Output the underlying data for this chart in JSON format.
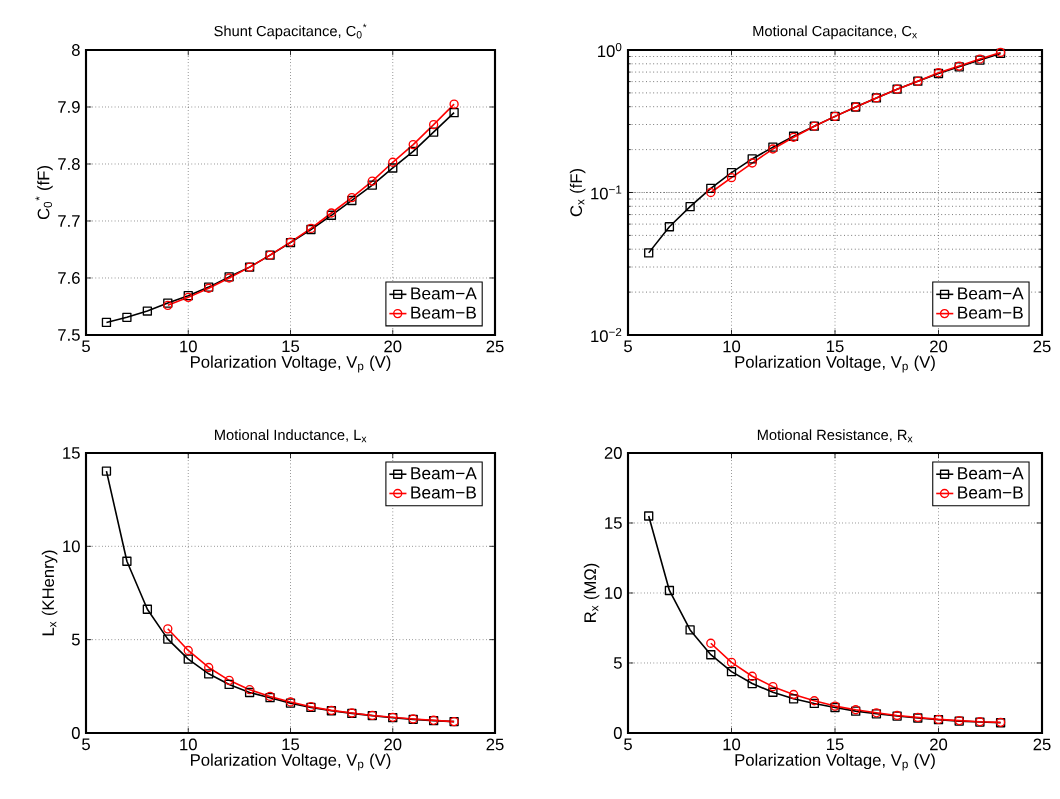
{
  "chart_data": [
    {
      "type": "line",
      "title": "Shunt Capacitance, C$_{0}$$^{*}$",
      "xlabel": "Polarization Voltage, V$_{p}$ (V)",
      "ylabel": "C$_{0}$$^{*}$ (fF)",
      "xlim": [
        5,
        25
      ],
      "xticks": [
        5,
        10,
        15,
        20,
        25
      ],
      "ylim": [
        7.5,
        8
      ],
      "yticks": [
        7.5,
        7.6,
        7.7,
        7.8,
        7.9,
        8
      ],
      "grid": true,
      "legend": "bottom right",
      "series": [
        {
          "name": "Beam−A",
          "color": "#000000",
          "marker": "square",
          "x": [
            6,
            7,
            8,
            9,
            10,
            11,
            12,
            13,
            14,
            15,
            16,
            17,
            18,
            19,
            20,
            21,
            22,
            23
          ],
          "values": [
            7.522,
            7.531,
            7.542,
            7.556,
            7.569,
            7.584,
            7.602,
            7.619,
            7.64,
            7.662,
            7.685,
            7.71,
            7.736,
            7.763,
            7.793,
            7.822,
            7.856,
            7.89
          ]
        },
        {
          "name": "Beam−B",
          "color": "#ff0000",
          "marker": "circle",
          "x": [
            9,
            10,
            11,
            12,
            13,
            14,
            15,
            16,
            17,
            18,
            19,
            20,
            21,
            22,
            23
          ],
          "values": [
            7.552,
            7.566,
            7.582,
            7.6,
            7.619,
            7.64,
            7.663,
            7.687,
            7.714,
            7.741,
            7.77,
            7.803,
            7.834,
            7.869,
            7.905
          ]
        }
      ]
    },
    {
      "type": "line",
      "title": "Motional Capacitance, C$_{x}$",
      "xlabel": "Polarization Voltage, V$_{p}$ (V)",
      "ylabel": "C$_{x}$ (fF)",
      "log": "y",
      "xlim": [
        5,
        25
      ],
      "xticks": [
        5,
        10,
        15,
        20,
        25
      ],
      "ylim": [
        0.01,
        1
      ],
      "yticks": [
        {
          "value": 0.01,
          "label": "10$^{−2}$"
        },
        {
          "value": 0.1,
          "label": "10$^{−1}$"
        },
        {
          "value": 1,
          "label": "10$^{0}$"
        }
      ],
      "grid": true,
      "legend": "bottom right",
      "series": [
        {
          "name": "Beam−A",
          "color": "#000000",
          "marker": "square",
          "x": [
            6,
            7,
            8,
            9,
            10,
            11,
            12,
            13,
            14,
            15,
            16,
            17,
            18,
            19,
            20,
            21,
            22,
            23
          ],
          "values": [
            0.0377,
            0.0575,
            0.0796,
            0.107,
            0.138,
            0.172,
            0.208,
            0.248,
            0.292,
            0.342,
            0.398,
            0.461,
            0.531,
            0.604,
            0.684,
            0.762,
            0.85,
            0.947
          ]
        },
        {
          "name": "Beam−B",
          "color": "#ff0000",
          "marker": "circle",
          "x": [
            9,
            10,
            11,
            12,
            13,
            14,
            15,
            16,
            17,
            18,
            19,
            20,
            21,
            22,
            23
          ],
          "values": [
            0.1,
            0.127,
            0.161,
            0.202,
            0.244,
            0.292,
            0.342,
            0.398,
            0.461,
            0.531,
            0.604,
            0.692,
            0.771,
            0.864,
            0.962
          ]
        }
      ]
    },
    {
      "type": "line",
      "title": "Motional Inductance, L$_{x}$",
      "xlabel": "Polarization Voltage, V$_{p}$ (V)",
      "ylabel": "L$_{x}$ (KHenry)",
      "xlim": [
        5,
        25
      ],
      "xticks": [
        5,
        10,
        15,
        20,
        25
      ],
      "ylim": [
        0,
        15
      ],
      "yticks": [
        0,
        5,
        10,
        15
      ],
      "grid": true,
      "legend": "top right",
      "series": [
        {
          "name": "Beam−A",
          "color": "#000000",
          "marker": "square",
          "x": [
            6,
            7,
            8,
            9,
            10,
            11,
            12,
            13,
            14,
            15,
            16,
            17,
            18,
            19,
            20,
            21,
            22,
            23
          ],
          "values": [
            14.03,
            9.2,
            6.63,
            5.03,
            3.96,
            3.17,
            2.6,
            2.17,
            1.89,
            1.6,
            1.37,
            1.19,
            1.05,
            0.93,
            0.82,
            0.73,
            0.66,
            0.61
          ]
        },
        {
          "name": "Beam−B",
          "color": "#ff0000",
          "marker": "circle",
          "x": [
            9,
            10,
            11,
            12,
            13,
            14,
            15,
            16,
            17,
            18,
            19,
            20,
            21,
            22,
            23
          ],
          "values": [
            5.58,
            4.42,
            3.51,
            2.82,
            2.32,
            1.96,
            1.66,
            1.41,
            1.21,
            1.07,
            0.94,
            0.84,
            0.75,
            0.68,
            0.61
          ]
        }
      ]
    },
    {
      "type": "line",
      "title": "Motional Resistance, R$_{x}$",
      "xlabel": "Polarization Voltage, V$_{p}$ (V)",
      "ylabel": "R$_{x}$ (MΩ)",
      "xlim": [
        5,
        25
      ],
      "xticks": [
        5,
        10,
        15,
        20,
        25
      ],
      "ylim": [
        0,
        20
      ],
      "yticks": [
        0,
        5,
        10,
        15,
        20
      ],
      "grid": true,
      "legend": "top right",
      "series": [
        {
          "name": "Beam−A",
          "color": "#000000",
          "marker": "square",
          "x": [
            6,
            7,
            8,
            9,
            10,
            11,
            12,
            13,
            14,
            15,
            16,
            17,
            18,
            19,
            20,
            21,
            22,
            23
          ],
          "values": [
            15.5,
            10.18,
            7.36,
            5.59,
            4.38,
            3.53,
            2.91,
            2.44,
            2.11,
            1.82,
            1.56,
            1.37,
            1.21,
            1.07,
            0.95,
            0.85,
            0.78,
            0.73
          ]
        },
        {
          "name": "Beam−B",
          "color": "#ff0000",
          "marker": "circle",
          "x": [
            9,
            10,
            11,
            12,
            13,
            14,
            15,
            16,
            17,
            18,
            19,
            20,
            21,
            22,
            23
          ],
          "values": [
            6.41,
            5.04,
            4.05,
            3.31,
            2.75,
            2.3,
            1.92,
            1.66,
            1.44,
            1.25,
            1.11,
            0.97,
            0.88,
            0.8,
            0.76
          ]
        }
      ]
    }
  ]
}
